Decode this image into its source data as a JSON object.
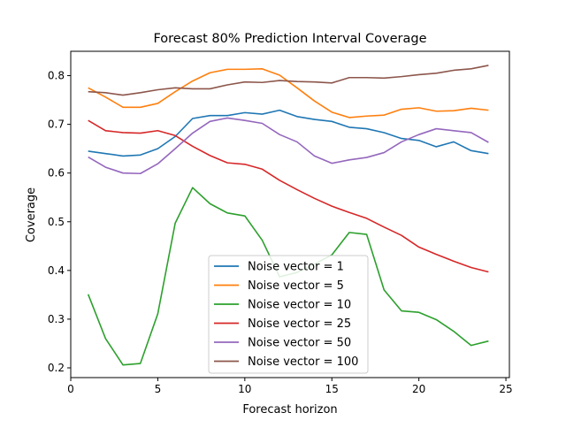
{
  "chart_data": {
    "type": "line",
    "title": "Forecast 80% Prediction Interval Coverage",
    "xlabel": "Forecast horizon",
    "ylabel": "Coverage",
    "xlim": [
      0,
      25.2
    ],
    "ylim": [
      0.18,
      0.85
    ],
    "xticks": [
      0,
      5,
      10,
      15,
      20,
      25
    ],
    "yticks": [
      0.2,
      0.3,
      0.4,
      0.5,
      0.6,
      0.7,
      0.8
    ],
    "xtick_labels": [
      "0",
      "5",
      "10",
      "15",
      "20",
      "25"
    ],
    "ytick_labels": [
      "0.2",
      "0.3",
      "0.4",
      "0.5",
      "0.6",
      "0.7",
      "0.8"
    ],
    "grid": false,
    "legend_position": "lower-center",
    "x": [
      1,
      2,
      3,
      4,
      5,
      6,
      7,
      8,
      9,
      10,
      11,
      12,
      13,
      14,
      15,
      16,
      17,
      18,
      19,
      20,
      21,
      22,
      23,
      24
    ],
    "series": [
      {
        "name": "Noise vector = 1",
        "color": "#1f77b4",
        "values": [
          0.645,
          0.64,
          0.635,
          0.637,
          0.65,
          0.675,
          0.712,
          0.718,
          0.718,
          0.724,
          0.721,
          0.729,
          0.716,
          0.71,
          0.706,
          0.694,
          0.691,
          0.683,
          0.671,
          0.667,
          0.654,
          0.664,
          0.646,
          0.64
        ]
      },
      {
        "name": "Noise vector = 5",
        "color": "#ff7f0e",
        "values": [
          0.775,
          0.756,
          0.735,
          0.735,
          0.743,
          0.767,
          0.789,
          0.806,
          0.813,
          0.813,
          0.814,
          0.801,
          0.775,
          0.748,
          0.725,
          0.714,
          0.717,
          0.719,
          0.731,
          0.734,
          0.727,
          0.728,
          0.733,
          0.729
        ]
      },
      {
        "name": "Noise vector = 10",
        "color": "#2ca02c",
        "values": [
          0.351,
          0.26,
          0.206,
          0.209,
          0.311,
          0.497,
          0.57,
          0.537,
          0.518,
          0.512,
          0.462,
          0.387,
          0.396,
          0.413,
          0.432,
          0.478,
          0.474,
          0.36,
          0.317,
          0.314,
          0.299,
          0.275,
          0.246,
          0.255
        ]
      },
      {
        "name": "Noise vector = 25",
        "color": "#d62728",
        "values": [
          0.708,
          0.687,
          0.683,
          0.682,
          0.687,
          0.677,
          0.655,
          0.636,
          0.621,
          0.618,
          0.608,
          0.585,
          0.566,
          0.548,
          0.532,
          0.519,
          0.507,
          0.489,
          0.472,
          0.448,
          0.433,
          0.419,
          0.406,
          0.397
        ]
      },
      {
        "name": "Noise vector = 50",
        "color": "#9467bd",
        "values": [
          0.633,
          0.612,
          0.6,
          0.599,
          0.619,
          0.65,
          0.682,
          0.706,
          0.713,
          0.708,
          0.702,
          0.679,
          0.664,
          0.635,
          0.62,
          0.627,
          0.632,
          0.642,
          0.664,
          0.679,
          0.691,
          0.687,
          0.683,
          0.663
        ]
      },
      {
        "name": "Noise vector = 100",
        "color": "#8c564b",
        "values": [
          0.767,
          0.765,
          0.76,
          0.765,
          0.771,
          0.775,
          0.773,
          0.773,
          0.781,
          0.787,
          0.786,
          0.79,
          0.788,
          0.787,
          0.785,
          0.796,
          0.796,
          0.795,
          0.798,
          0.802,
          0.805,
          0.811,
          0.814,
          0.821
        ]
      }
    ]
  }
}
